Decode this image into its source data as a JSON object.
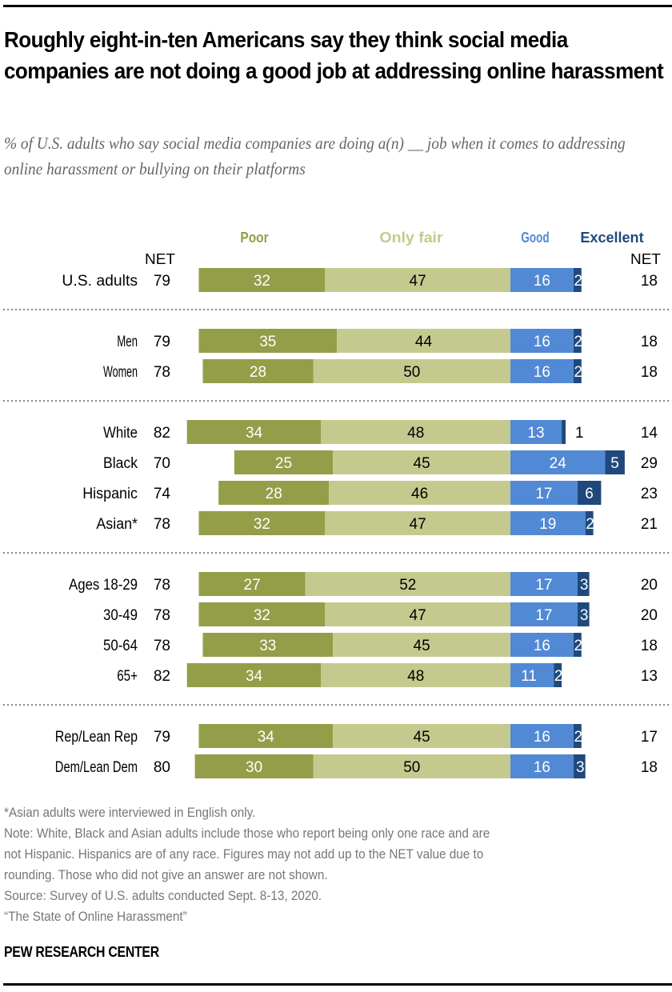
{
  "header": {
    "title": "Roughly eight-in-ten Americans say they think social media companies are not doing a good job at addressing online harassment",
    "subtitle": "% of U.S. adults who say social media companies are doing a(n) __ job when it comes to addressing online harassment or bullying on their platforms"
  },
  "colors": {
    "poor": "#949d48",
    "only_fair": "#c4ca8e",
    "good": "#5189d4",
    "excellent": "#1f497d",
    "divider": "#888888"
  },
  "chart_data": {
    "type": "bar",
    "orientation": "horizontal",
    "stacked": "diverging",
    "title": "Roughly eight-in-ten Americans say they think social media companies are not doing a good job at addressing online harassment",
    "legend": [
      "Poor",
      "Only fair",
      "Good",
      "Excellent"
    ],
    "legend_placement": "top",
    "net_left_label": "NET",
    "net_right_label": "NET",
    "categories": [
      "U.S. adults",
      "Men",
      "Women",
      "White",
      "Black",
      "Hispanic",
      "Asian*",
      "Ages 18-29",
      "30-49",
      "50-64",
      "65+",
      "Rep/Lean Rep",
      "Dem/Lean Dem"
    ],
    "groups": [
      [
        0
      ],
      [
        1,
        2
      ],
      [
        3,
        4,
        5,
        6
      ],
      [
        7,
        8,
        9,
        10
      ],
      [
        11,
        12
      ]
    ],
    "series": [
      {
        "name": "Poor",
        "values": [
          32,
          35,
          28,
          34,
          25,
          28,
          32,
          27,
          32,
          33,
          34,
          34,
          30
        ]
      },
      {
        "name": "Only fair",
        "values": [
          47,
          44,
          50,
          48,
          45,
          46,
          47,
          52,
          47,
          45,
          48,
          45,
          50
        ]
      },
      {
        "name": "Good",
        "values": [
          16,
          16,
          16,
          13,
          24,
          17,
          19,
          17,
          17,
          16,
          11,
          16,
          16
        ]
      },
      {
        "name": "Excellent",
        "values": [
          2,
          2,
          2,
          1,
          5,
          6,
          2,
          3,
          3,
          2,
          2,
          2,
          3
        ]
      }
    ],
    "net_negative": [
      79,
      79,
      78,
      82,
      70,
      74,
      78,
      78,
      78,
      78,
      82,
      79,
      80
    ],
    "net_positive": [
      18,
      18,
      18,
      14,
      29,
      23,
      21,
      20,
      20,
      18,
      13,
      17,
      18
    ],
    "xlabel": "",
    "ylabel": "",
    "grid": false
  },
  "footer": {
    "notes": [
      "*Asian adults were interviewed in English only.",
      "Note: White, Black and Asian adults include those who report being only one race and are",
      "not Hispanic. Hispanics are of any race. Figures may not add up to the NET value due to",
      "rounding. Those who did not give an answer are not shown.",
      "Source: Survey of U.S. adults conducted Sept. 8-13, 2020.",
      "“The State of Online Harassment”"
    ],
    "brand": "PEW RESEARCH CENTER"
  }
}
